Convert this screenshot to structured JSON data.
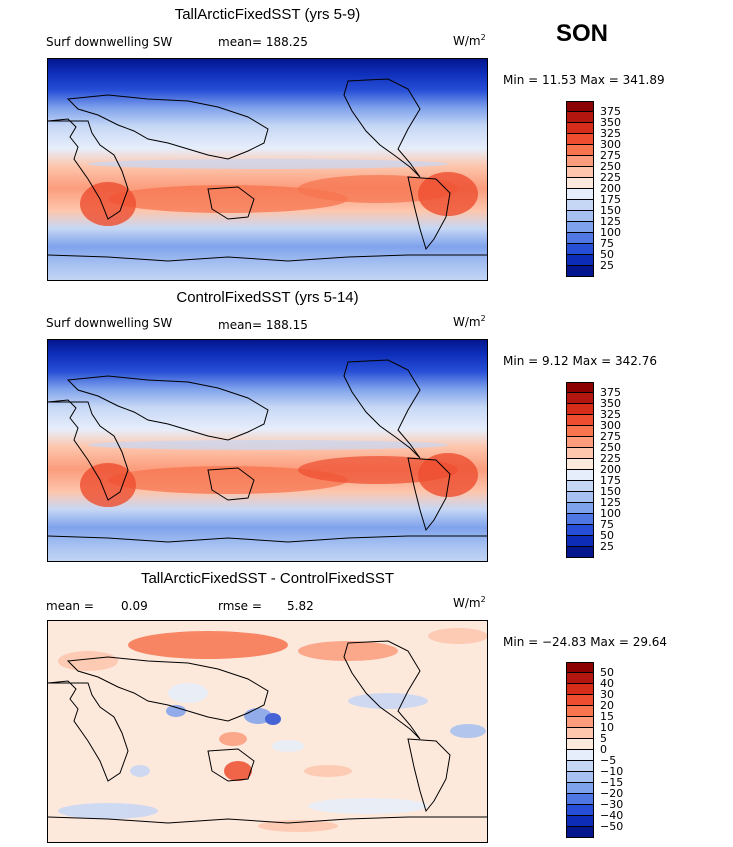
{
  "season": "SON",
  "unit_prefix": "W/m",
  "unit_exp": "2",
  "panels": [
    {
      "title": "TallArcticFixedSST (yrs 5-9)",
      "variable": "Surf downwelling SW",
      "stat": "mean= 188.25",
      "minmax": "Min =  11.53 Max = 341.89"
    },
    {
      "title": "ControlFixedSST (yrs 5-14)",
      "variable": "Surf downwelling SW",
      "stat": "mean= 188.15",
      "minmax": "Min =   9.12 Max = 342.76"
    },
    {
      "title": "TallArcticFixedSST - ControlFixedSST",
      "mean_label": "mean =",
      "mean_value": "0.09",
      "rmse_label": "rmse =",
      "rmse_value": "5.82",
      "minmax": "Min = −24.83 Max =  29.64"
    }
  ],
  "colorbar_abs": {
    "levels": [
      "375",
      "350",
      "325",
      "300",
      "275",
      "250",
      "225",
      "200",
      "175",
      "150",
      "125",
      "100",
      "75",
      "50",
      "25"
    ],
    "colors": [
      "#8b0000",
      "#b2160f",
      "#d62c1a",
      "#ee4d2f",
      "#f7744f",
      "#fb9c7c",
      "#fdc6ad",
      "#fde8dc",
      "#e6eefb",
      "#c6d7f5",
      "#a6c1f1",
      "#7fa2ec",
      "#5078e4",
      "#274ed6",
      "#0d2db8",
      "#04168e"
    ]
  },
  "colorbar_diff": {
    "levels": [
      "50",
      "40",
      "30",
      "20",
      "15",
      "10",
      "5",
      "0",
      "−5",
      "−10",
      "−15",
      "−20",
      "−30",
      "−40",
      "−50"
    ],
    "colors": [
      "#8b0000",
      "#b2160f",
      "#d62c1a",
      "#ee4d2f",
      "#f7744f",
      "#fb9c7c",
      "#fdc6ad",
      "#fde8dc",
      "#e6eefb",
      "#c6d7f5",
      "#a6c1f1",
      "#7fa2ec",
      "#5078e4",
      "#274ed6",
      "#0d2db8",
      "#04168e"
    ]
  }
}
